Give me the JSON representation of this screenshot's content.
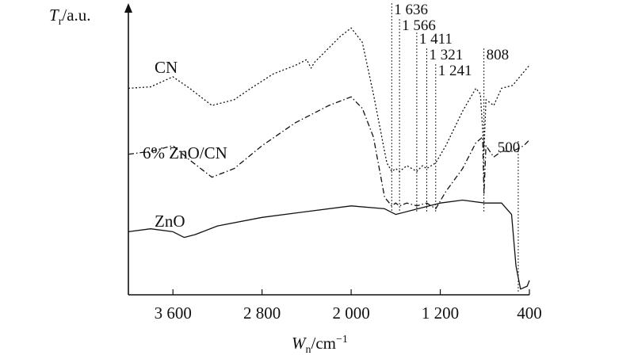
{
  "chart_data": {
    "type": "line",
    "xlabel": {
      "main": "W",
      "sub": "n",
      "unit": "/cm",
      "sup": "−1"
    },
    "ylabel": {
      "main": "T",
      "sub": "r",
      "unit": "/a.u."
    },
    "xlim": [
      4000,
      400
    ],
    "x_ticks": [
      3600,
      2800,
      2000,
      1200,
      400
    ],
    "x_tick_labels": [
      "3 600",
      "2 800",
      "2 000",
      "1 200",
      "400"
    ],
    "series": [
      {
        "name": "CN",
        "style": "dotted",
        "points": [
          [
            4000,
            0.72
          ],
          [
            3800,
            0.725
          ],
          [
            3600,
            0.76
          ],
          [
            3450,
            0.72
          ],
          [
            3250,
            0.66
          ],
          [
            3050,
            0.68
          ],
          [
            2900,
            0.72
          ],
          [
            2700,
            0.77
          ],
          [
            2500,
            0.8
          ],
          [
            2400,
            0.82
          ],
          [
            2360,
            0.79
          ],
          [
            2330,
            0.81
          ],
          [
            2100,
            0.9
          ],
          [
            2000,
            0.93
          ],
          [
            1900,
            0.88
          ],
          [
            1800,
            0.7
          ],
          [
            1680,
            0.46
          ],
          [
            1636,
            0.43
          ],
          [
            1600,
            0.44
          ],
          [
            1566,
            0.43
          ],
          [
            1500,
            0.45
          ],
          [
            1411,
            0.43
          ],
          [
            1360,
            0.45
          ],
          [
            1321,
            0.44
          ],
          [
            1241,
            0.46
          ],
          [
            1150,
            0.52
          ],
          [
            1000,
            0.64
          ],
          [
            880,
            0.72
          ],
          [
            840,
            0.7
          ],
          [
            808,
            0.5
          ],
          [
            790,
            0.68
          ],
          [
            720,
            0.66
          ],
          [
            650,
            0.72
          ],
          [
            550,
            0.73
          ],
          [
            400,
            0.8
          ]
        ]
      },
      {
        "name": "6% ZnO/CN",
        "style": "dash-dot",
        "points": [
          [
            4000,
            0.49
          ],
          [
            3800,
            0.5
          ],
          [
            3600,
            0.52
          ],
          [
            3450,
            0.47
          ],
          [
            3250,
            0.41
          ],
          [
            3050,
            0.44
          ],
          [
            2800,
            0.52
          ],
          [
            2500,
            0.6
          ],
          [
            2200,
            0.66
          ],
          [
            2000,
            0.69
          ],
          [
            1900,
            0.65
          ],
          [
            1800,
            0.55
          ],
          [
            1700,
            0.34
          ],
          [
            1636,
            0.31
          ],
          [
            1600,
            0.32
          ],
          [
            1566,
            0.31
          ],
          [
            1500,
            0.32
          ],
          [
            1411,
            0.31
          ],
          [
            1321,
            0.32
          ],
          [
            1241,
            0.3
          ],
          [
            1150,
            0.36
          ],
          [
            1000,
            0.44
          ],
          [
            880,
            0.53
          ],
          [
            820,
            0.55
          ],
          [
            808,
            0.35
          ],
          [
            790,
            0.52
          ],
          [
            720,
            0.48
          ],
          [
            650,
            0.5
          ],
          [
            550,
            0.5
          ],
          [
            450,
            0.52
          ],
          [
            400,
            0.54
          ]
        ]
      },
      {
        "name": "ZnO",
        "style": "solid",
        "points": [
          [
            4000,
            0.22
          ],
          [
            3800,
            0.23
          ],
          [
            3600,
            0.22
          ],
          [
            3500,
            0.2
          ],
          [
            3400,
            0.21
          ],
          [
            3200,
            0.24
          ],
          [
            2800,
            0.27
          ],
          [
            2400,
            0.29
          ],
          [
            2000,
            0.31
          ],
          [
            1700,
            0.3
          ],
          [
            1600,
            0.28
          ],
          [
            1400,
            0.3
          ],
          [
            1200,
            0.32
          ],
          [
            1000,
            0.33
          ],
          [
            800,
            0.32
          ],
          [
            650,
            0.32
          ],
          [
            560,
            0.28
          ],
          [
            520,
            0.1
          ],
          [
            480,
            0.02
          ],
          [
            420,
            0.03
          ],
          [
            400,
            0.05
          ]
        ]
      }
    ],
    "markers": [
      {
        "label": "1 636",
        "x": 1636,
        "series": "CN"
      },
      {
        "label": "1 566",
        "x": 1566,
        "series": "CN"
      },
      {
        "label": "1 411",
        "x": 1411,
        "series": "CN"
      },
      {
        "label": "1 321",
        "x": 1321,
        "series": "CN"
      },
      {
        "label": "1 241",
        "x": 1241,
        "series": "CN"
      },
      {
        "label": "808",
        "x": 808,
        "series": "CN"
      },
      {
        "label": "500",
        "x": 500,
        "series": "6% ZnO/CN"
      }
    ]
  }
}
